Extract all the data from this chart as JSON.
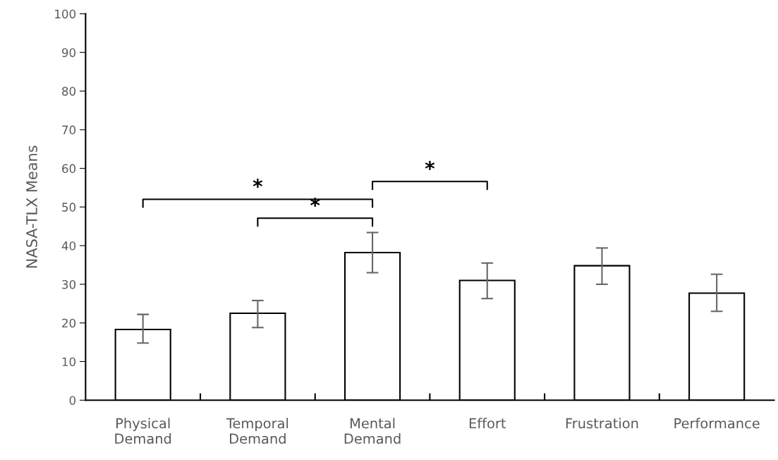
{
  "chart_data": {
    "type": "bar",
    "ylabel": "NASA-TLX Means",
    "categories": [
      "Physical\nDemand",
      "Temporal\nDemand",
      "Mental\nDemand",
      "Effort",
      "Frustration",
      "Performance"
    ],
    "values": [
      18.3,
      22.5,
      38.2,
      31.0,
      34.8,
      27.7
    ],
    "errors": [
      [
        14.8,
        22.2
      ],
      [
        18.8,
        25.8
      ],
      [
        33.0,
        43.4
      ],
      [
        26.3,
        35.5
      ],
      [
        30.0,
        39.4
      ],
      [
        23.0,
        32.6
      ]
    ],
    "color": "#ffffff",
    "ylim": [
      0,
      100
    ],
    "yticks": [
      0,
      10,
      20,
      30,
      40,
      50,
      60,
      70,
      80,
      90,
      100
    ],
    "grid": false,
    "legend": false,
    "annotations": [
      "*",
      "*",
      "*"
    ]
  }
}
